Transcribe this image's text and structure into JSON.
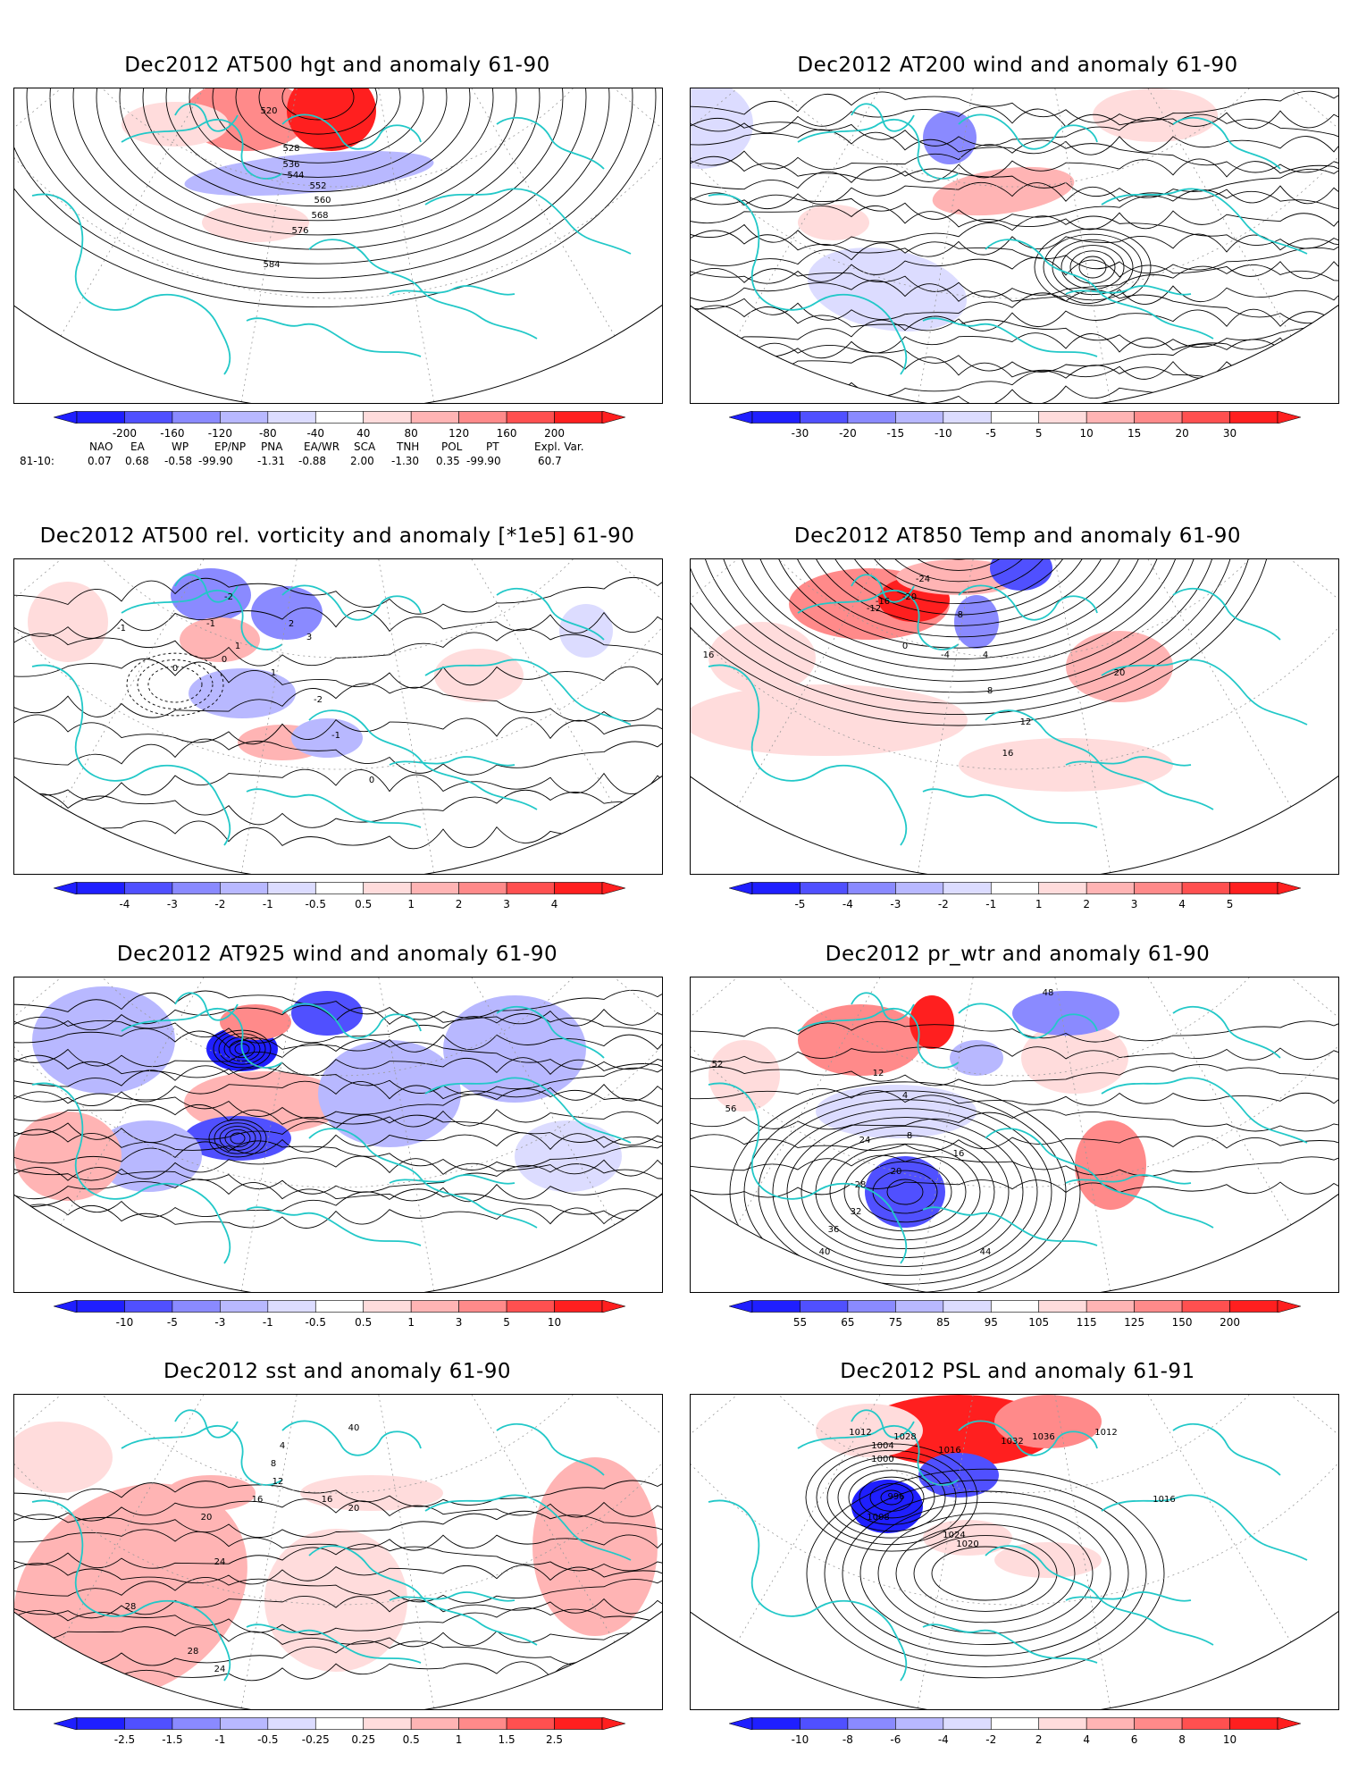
{
  "panels": [
    {
      "title": "Dec2012 AT500 hgt and anomaly 61-90",
      "kind": "hgt",
      "colorbar": [
        "-200",
        "-160",
        "-120",
        "-80",
        "-40",
        "40",
        "80",
        "120",
        "160",
        "200"
      ],
      "contour_labels": [
        "520",
        "528",
        "536",
        "544",
        "552",
        "560",
        "568",
        "576",
        "584"
      ]
    },
    {
      "title": "Dec2012 AT200 wind and anomaly 61-90",
      "kind": "wind",
      "colorbar": [
        "-30",
        "-20",
        "-15",
        "-10",
        "-5",
        "5",
        "10",
        "15",
        "20",
        "30"
      ],
      "contour_labels": []
    },
    {
      "title": "Dec2012 AT500 rel. vorticity and anomaly [*1e5] 61-90",
      "kind": "vort",
      "colorbar": [
        "-4",
        "-3",
        "-2",
        "-1",
        "-0.5",
        "0.5",
        "1",
        "2",
        "3",
        "4"
      ],
      "contour_labels": [
        "-2",
        "-1",
        "0",
        "1",
        "2",
        "3",
        "-1",
        "0",
        "1",
        "-2",
        "-1",
        "0"
      ]
    },
    {
      "title": "Dec2012 AT850 Temp and anomaly 61-90",
      "kind": "temp",
      "colorbar": [
        "-5",
        "-4",
        "-3",
        "-2",
        "-1",
        "1",
        "2",
        "3",
        "4",
        "5"
      ],
      "contour_labels": [
        "-24",
        "-20",
        "-16",
        "-12",
        "-8",
        "-4",
        "0",
        "4",
        "8",
        "12",
        "16",
        "20",
        "16"
      ]
    },
    {
      "title": "Dec2012 AT925 wind and anomaly 61-90",
      "kind": "wind925",
      "colorbar": [
        "-10",
        "-5",
        "-3",
        "-1",
        "-0.5",
        "0.5",
        "1",
        "3",
        "5",
        "10"
      ],
      "contour_labels": []
    },
    {
      "title": "Dec2012 pr_wtr and anomaly 61-90",
      "kind": "prwtr",
      "colorbar": [
        "55",
        "65",
        "75",
        "85",
        "95",
        "105",
        "115",
        "125",
        "150",
        "200"
      ],
      "contour_labels": [
        "4",
        "8",
        "12",
        "16",
        "20",
        "24",
        "28",
        "32",
        "36",
        "40",
        "44",
        "48",
        "52",
        "56"
      ]
    },
    {
      "title": "Dec2012 sst and anomaly 61-90",
      "kind": "sst",
      "colorbar": [
        "-2.5",
        "-1.5",
        "-1",
        "-0.5",
        "-0.25",
        "0.25",
        "0.5",
        "1",
        "1.5",
        "2.5"
      ],
      "contour_labels": [
        "4",
        "8",
        "12",
        "16",
        "20",
        "24",
        "28",
        "28",
        "24",
        "20",
        "16",
        "40"
      ]
    },
    {
      "title": "Dec2012 PSL and anomaly 61-91",
      "kind": "psl",
      "colorbar": [
        "-10",
        "-8",
        "-6",
        "-4",
        "-2",
        "2",
        "4",
        "6",
        "8",
        "10"
      ],
      "contour_labels": [
        "996",
        "1000",
        "1004",
        "1008",
        "1012",
        "1016",
        "1020",
        "1024",
        "1028",
        "1032",
        "1036",
        "1012",
        "1016"
      ]
    }
  ],
  "teleconnections": {
    "headers": [
      "NAO",
      "EA",
      "WP",
      "EP/NP",
      "PNA",
      "EA/WR",
      "SCA",
      "TNH",
      "POL",
      "PT",
      "Expl. Var."
    ],
    "row_label": "81-10:",
    "values": [
      "0.07",
      "0.68",
      "-0.58",
      "-99.90",
      "-1.31",
      "-0.88",
      "2.00",
      "-1.30",
      "0.35",
      "-99.90",
      "60.7"
    ]
  },
  "colors": {
    "coast": "#22c8c8",
    "blue": [
      "#1f1fff",
      "#5050ff",
      "#8a8aff",
      "#b8b8ff",
      "#dcdcff"
    ],
    "red": [
      "#ffdcdc",
      "#ffb4b4",
      "#ff8a8a",
      "#ff5050",
      "#ff1f1f"
    ],
    "contour": "#000000",
    "grid": "#9a9a9a"
  }
}
